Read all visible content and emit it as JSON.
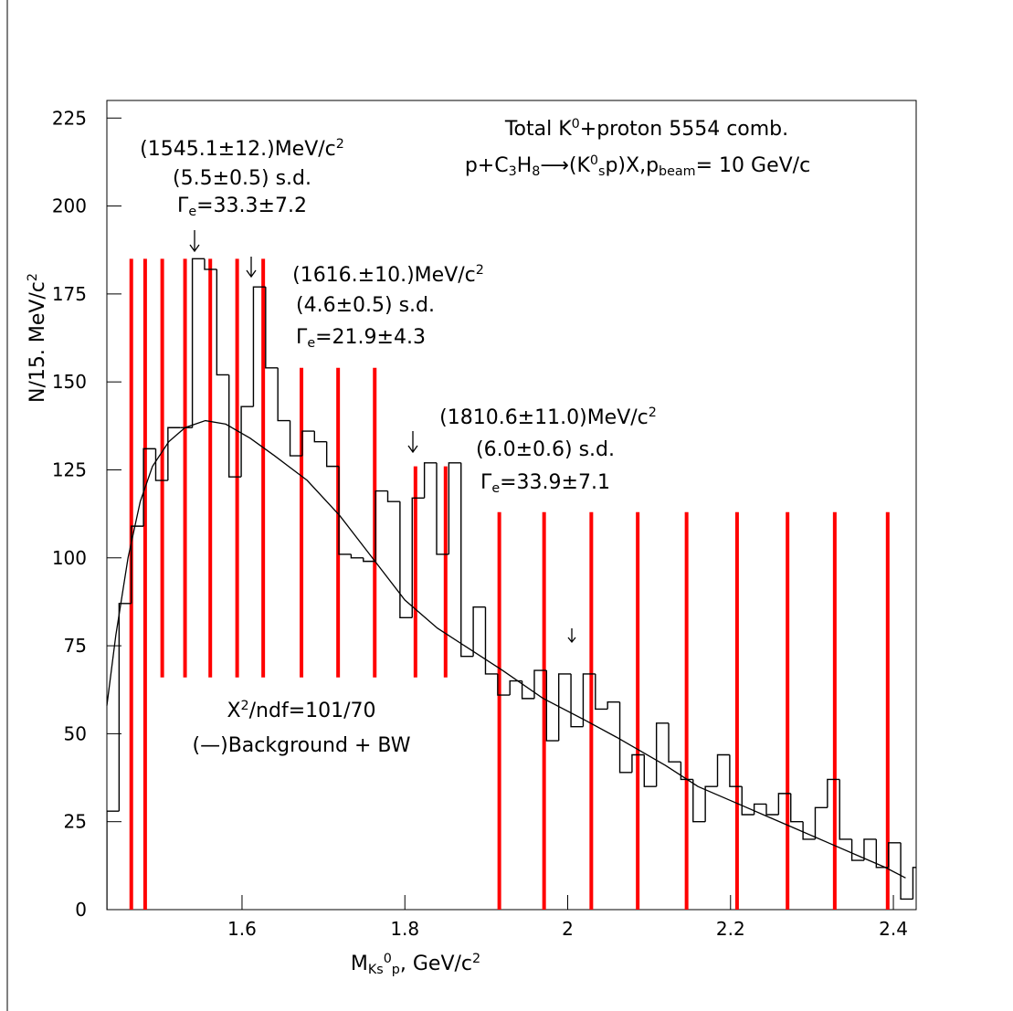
{
  "chart_data": {
    "type": "histogram",
    "title": [
      {
        "t": "Total K"
      },
      {
        "t": "0",
        "s": "sup"
      },
      {
        "t": "+proton 5554 comb."
      }
    ],
    "subtitle": [
      {
        "t": "p+C"
      },
      {
        "t": "3",
        "s": "sub"
      },
      {
        "t": "H"
      },
      {
        "t": "8",
        "s": "sub"
      },
      {
        "t": "⟶(K"
      },
      {
        "t": "0",
        "s": "sup"
      },
      {
        "t": "s",
        "s": "sub"
      },
      {
        "t": "p)X,p"
      },
      {
        "t": "beam",
        "s": "sub"
      },
      {
        "t": "= 10 GeV/c"
      }
    ],
    "xlabel": [
      {
        "t": "M"
      },
      {
        "t": "Ks",
        "s": "sub"
      },
      {
        "t": "0",
        "s": "sup"
      },
      {
        "t": "p",
        "s": "sub"
      },
      {
        "t": ", GeV/c"
      },
      {
        "t": "2",
        "s": "sup"
      }
    ],
    "ylabel": [
      {
        "t": "N/15. MeV/c"
      },
      {
        "t": "2",
        "s": "sup"
      }
    ],
    "xlim": [
      1.434,
      2.428
    ],
    "ylim": [
      0,
      230
    ],
    "xticks": [
      1.6,
      1.8,
      2,
      2.2,
      2.4
    ],
    "yticks": [
      0,
      25,
      50,
      75,
      100,
      125,
      150,
      175,
      200,
      225
    ],
    "bins": [
      1.434,
      1.449,
      1.464,
      1.479,
      1.494,
      1.509,
      1.524,
      1.539,
      1.554,
      1.569,
      1.584,
      1.599,
      1.614,
      1.629,
      1.644,
      1.659,
      1.674,
      1.689,
      1.704,
      1.719,
      1.734,
      1.749,
      1.764,
      1.779,
      1.794,
      1.809,
      1.824,
      1.839,
      1.854,
      1.869,
      1.884,
      1.899,
      1.914,
      1.929,
      1.944,
      1.959,
      1.974,
      1.989,
      2.004,
      2.019,
      2.034,
      2.049,
      2.064,
      2.079,
      2.094,
      2.109,
      2.124,
      2.139,
      2.154,
      2.169,
      2.184,
      2.199,
      2.214,
      2.229,
      2.244,
      2.259,
      2.274,
      2.289,
      2.304,
      2.319,
      2.334,
      2.349,
      2.364,
      2.379,
      2.394,
      2.409,
      2.424,
      2.439
    ],
    "values": [
      28,
      87,
      109,
      131,
      122,
      137,
      137,
      185,
      182,
      152,
      123,
      143,
      177,
      154,
      139,
      129,
      136,
      133,
      126,
      101,
      100,
      99,
      119,
      116,
      83,
      117,
      127,
      101,
      127,
      72,
      86,
      67,
      61,
      65,
      60,
      68,
      48,
      67,
      52,
      67,
      57,
      59,
      39,
      44,
      35,
      53,
      42,
      37,
      25,
      35,
      44,
      35,
      27,
      30,
      27,
      33,
      25,
      20,
      29,
      37,
      20,
      14,
      20,
      12,
      19,
      3,
      12
    ],
    "color": "#000000",
    "fit": {
      "color": "#000000",
      "x": [
        1.434,
        1.445,
        1.46,
        1.475,
        1.49,
        1.51,
        1.53,
        1.555,
        1.58,
        1.61,
        1.64,
        1.68,
        1.72,
        1.76,
        1.8,
        1.84,
        1.88,
        1.92,
        1.97,
        2.02,
        2.06,
        2.12,
        2.16,
        2.2,
        2.24,
        2.28,
        2.32,
        2.36,
        2.39,
        2.415
      ],
      "y": [
        58,
        78,
        100,
        116,
        126,
        133,
        137,
        139,
        138,
        134,
        129,
        122,
        112,
        100,
        88,
        80,
        74,
        68,
        60,
        54,
        49,
        41,
        35,
        31,
        27,
        23,
        19,
        15,
        12,
        9
      ]
    },
    "lines": {
      "color": "#ff0000",
      "x": [
        1.464,
        1.481,
        1.502,
        1.53,
        1.561,
        1.594,
        1.626,
        1.673,
        1.718,
        1.763,
        1.813,
        1.85,
        1.916,
        1.971,
        2.029,
        2.086,
        2.146,
        2.208,
        2.27,
        2.328,
        2.393
      ],
      "y0": [
        0,
        0,
        66,
        66,
        66,
        66,
        66,
        66,
        66,
        66,
        66,
        66,
        0,
        0,
        0,
        0,
        0,
        0,
        0,
        0,
        0
      ],
      "y1": [
        185,
        185,
        185,
        185,
        185,
        185,
        185,
        154,
        154,
        154,
        126,
        126,
        113,
        113,
        113,
        113,
        113,
        113,
        113,
        113,
        113
      ]
    },
    "annotations": [
      [
        [
          {
            "t": "(1545.1±12.)MeV/c"
          },
          {
            "t": "2",
            "s": "sup"
          }
        ],
        [
          {
            "t": "(5.5±0.5) s.d."
          }
        ],
        [
          {
            "t": "Γ"
          },
          {
            "t": "e",
            "s": "sub"
          },
          {
            "t": "=33.3±7.2"
          }
        ]
      ],
      [
        [
          {
            "t": "(1616.±10.)MeV/c"
          },
          {
            "t": "2",
            "s": "sup"
          }
        ],
        [
          {
            "t": "(4.6±0.5) s.d."
          }
        ],
        [
          {
            "t": "Γ"
          },
          {
            "t": "e",
            "s": "sub"
          },
          {
            "t": "=21.9±4.3"
          }
        ]
      ],
      [
        [
          {
            "t": "(1810.6±11.0)MeV/c"
          },
          {
            "t": "2",
            "s": "sup"
          }
        ],
        [
          {
            "t": "(6.0±0.6) s.d."
          }
        ],
        [
          {
            "t": "Γ"
          },
          {
            "t": "e",
            "s": "sub"
          },
          {
            "t": "=33.9±7.1"
          }
        ]
      ],
      [
        [
          {
            "t": "X"
          },
          {
            "t": "2",
            "s": "sup"
          },
          {
            "t": "/ndf=101/70"
          }
        ],
        [
          {
            "t": "(—)Background + BW"
          }
        ]
      ]
    ]
  }
}
